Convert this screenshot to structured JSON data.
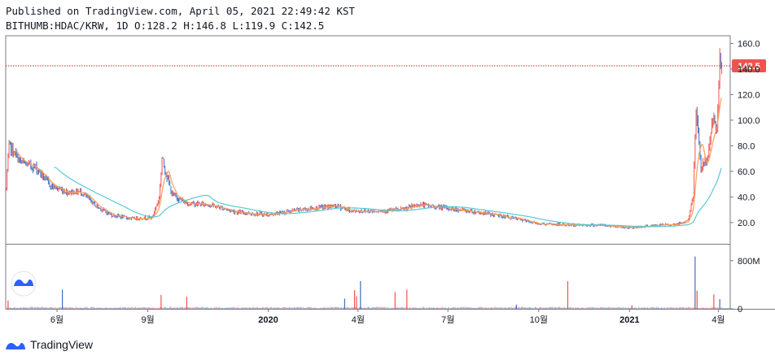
{
  "header": {
    "published": "Published on TradingView.com, April 05, 2021 22:49:42 KST",
    "symbol_line": "BITHUMB:HDAC/KRW, 1D O:128.2 H:146.8 L:119.9 C:142.5"
  },
  "footer": {
    "brand": "TradingView"
  },
  "colors": {
    "up": "#ef5350",
    "down": "#3d6fc4",
    "ma_fast": "#ff9e57",
    "ma_slow": "#56c9d6",
    "price_line": "#c62828",
    "badge": "#ef5350"
  },
  "chart_data": {
    "type": "candlestick",
    "title": "",
    "price_axis": {
      "ticks": [
        20.0,
        40.0,
        60.0,
        80.0,
        100.0,
        120.0,
        140.0,
        160.0
      ],
      "tick_labels": [
        "20.0",
        "40.0",
        "60.0",
        "80.0",
        "100.0",
        "120.0",
        "140.0",
        "160.0"
      ],
      "range": [
        4,
        166
      ]
    },
    "volume_axis": {
      "tick_labels": [
        "0",
        "800M"
      ],
      "ticks": [
        0,
        800000000
      ],
      "range": [
        0,
        1000000000
      ]
    },
    "x_axis": {
      "labels": [
        "6월",
        "9월",
        "2020",
        "4월",
        "7월",
        "10월",
        "2021",
        "4월"
      ],
      "label_dates": [
        "2019-06-01",
        "2019-09-01",
        "2020-01-01",
        "2020-04-01",
        "2020-07-01",
        "2020-10-01",
        "2021-01-01",
        "2021-04-01"
      ],
      "range": [
        "2019-04-10",
        "2021-04-13"
      ]
    },
    "last_price": {
      "value": 142.5,
      "label": "142.5"
    },
    "price_path": [
      [
        "2019-04-10",
        46
      ],
      [
        "2019-04-13",
        80
      ],
      [
        "2019-04-25",
        67
      ],
      [
        "2019-05-10",
        63
      ],
      [
        "2019-05-25",
        49
      ],
      [
        "2019-06-10",
        44
      ],
      [
        "2019-06-25",
        44
      ],
      [
        "2019-07-10",
        33
      ],
      [
        "2019-07-25",
        26
      ],
      [
        "2019-08-15",
        23
      ],
      [
        "2019-09-05",
        24
      ],
      [
        "2019-09-12",
        39
      ],
      [
        "2019-09-15",
        70
      ],
      [
        "2019-09-25",
        42
      ],
      [
        "2019-10-10",
        35
      ],
      [
        "2019-11-01",
        34
      ],
      [
        "2019-12-01",
        28
      ],
      [
        "2020-01-01",
        26
      ],
      [
        "2020-02-01",
        30
      ],
      [
        "2020-03-10",
        33
      ],
      [
        "2020-03-25",
        29
      ],
      [
        "2020-04-15",
        29
      ],
      [
        "2020-05-15",
        30
      ],
      [
        "2020-06-01",
        34
      ],
      [
        "2020-07-01",
        31
      ],
      [
        "2020-08-01",
        28
      ],
      [
        "2020-09-01",
        24
      ],
      [
        "2020-10-01",
        19
      ],
      [
        "2020-11-01",
        18
      ],
      [
        "2020-12-01",
        18
      ],
      [
        "2021-01-01",
        16
      ],
      [
        "2021-02-01",
        18
      ],
      [
        "2021-02-20",
        19
      ],
      [
        "2021-03-01",
        22
      ],
      [
        "2021-03-06",
        40
      ],
      [
        "2021-03-09",
        112
      ],
      [
        "2021-03-14",
        62
      ],
      [
        "2021-03-20",
        70
      ],
      [
        "2021-03-26",
        100
      ],
      [
        "2021-03-30",
        90
      ],
      [
        "2021-04-02",
        145
      ],
      [
        "2021-04-04",
        142.5
      ]
    ],
    "volume_spikes": [
      [
        "2019-04-12",
        140000000
      ],
      [
        "2019-06-06",
        320000000
      ],
      [
        "2019-09-14",
        230000000
      ],
      [
        "2019-10-10",
        200000000
      ],
      [
        "2020-03-18",
        170000000
      ],
      [
        "2020-03-28",
        310000000
      ],
      [
        "2020-03-30",
        210000000
      ],
      [
        "2020-04-03",
        460000000
      ],
      [
        "2020-05-08",
        280000000
      ],
      [
        "2020-05-20",
        320000000
      ],
      [
        "2020-09-08",
        70000000
      ],
      [
        "2020-10-30",
        460000000
      ],
      [
        "2021-01-03",
        60000000
      ],
      [
        "2021-03-08",
        870000000
      ],
      [
        "2021-03-10",
        300000000
      ],
      [
        "2021-03-27",
        240000000
      ],
      [
        "2021-04-02",
        160000000
      ]
    ]
  }
}
